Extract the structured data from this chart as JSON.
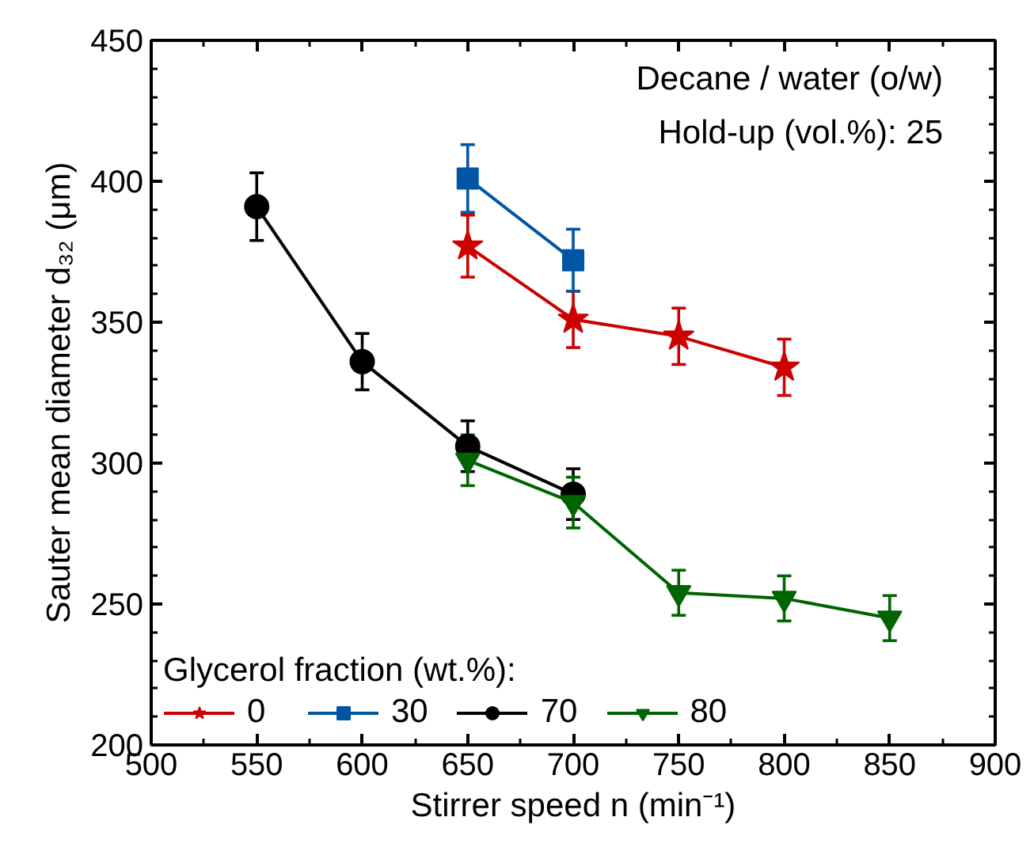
{
  "chart_data": {
    "type": "line",
    "xlabel": "Stirrer speed n (min⁻¹)",
    "ylabel": "Sauter mean diameter d₃₂ (μm)",
    "legend_title": "Glycerol fraction (wt.%):",
    "legend": "bottom left",
    "grid": false,
    "annotations": [
      "Decane / water (o/w)",
      "Hold-up (vol.%): 25"
    ],
    "xlim": [
      500,
      900
    ],
    "xticks": [
      500,
      550,
      600,
      650,
      700,
      750,
      800,
      850,
      900
    ],
    "ylim": [
      200,
      450
    ],
    "yticks": [
      200,
      250,
      300,
      350,
      400,
      450
    ],
    "series": [
      {
        "name": "0",
        "color": "#cc0000",
        "marker": "star",
        "x": [
          650,
          700,
          750,
          800
        ],
        "values": [
          377,
          351,
          345,
          334
        ],
        "errors": [
          11,
          10,
          10,
          10
        ]
      },
      {
        "name": "30",
        "color": "#0055a5",
        "marker": "square",
        "x": [
          650,
          700
        ],
        "values": [
          401,
          372
        ],
        "errors": [
          12,
          11
        ]
      },
      {
        "name": "70",
        "color": "#000000",
        "marker": "circle",
        "x": [
          550,
          600,
          650,
          700
        ],
        "values": [
          391,
          336,
          306,
          289
        ],
        "errors": [
          12,
          10,
          9,
          9
        ]
      },
      {
        "name": "80",
        "color": "#006400",
        "marker": "triangle",
        "x": [
          650,
          700,
          750,
          800,
          850
        ],
        "values": [
          301,
          286,
          254,
          252,
          245
        ],
        "errors": [
          9,
          9,
          8,
          8,
          8
        ]
      }
    ]
  }
}
